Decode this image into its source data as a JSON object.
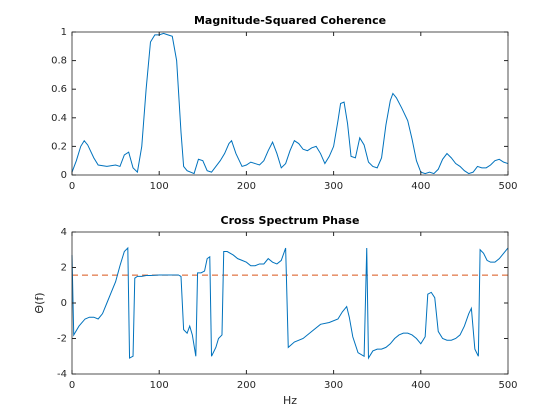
{
  "chart_data": [
    {
      "type": "line",
      "title": "Magnitude-Squared Coherence",
      "x": [
        0,
        5,
        10,
        14,
        18,
        25,
        30,
        40,
        50,
        55,
        60,
        65,
        70,
        75,
        80,
        85,
        90,
        95,
        100,
        105,
        110,
        115,
        120,
        125,
        128,
        132,
        140,
        145,
        150,
        155,
        160,
        165,
        170,
        175,
        180,
        183,
        188,
        195,
        200,
        205,
        210,
        215,
        220,
        225,
        230,
        235,
        240,
        245,
        250,
        255,
        260,
        265,
        270,
        275,
        280,
        285,
        290,
        295,
        300,
        305,
        308,
        312,
        316,
        320,
        325,
        330,
        335,
        340,
        345,
        350,
        355,
        360,
        365,
        368,
        372,
        378,
        385,
        390,
        395,
        400,
        405,
        410,
        415,
        420,
        425,
        430,
        435,
        440,
        445,
        450,
        455,
        460,
        465,
        470,
        475,
        480,
        485,
        490,
        495,
        500
      ],
      "series": [
        {
          "color": "#0072bd",
          "values": [
            0.02,
            0.1,
            0.2,
            0.24,
            0.21,
            0.12,
            0.07,
            0.06,
            0.07,
            0.06,
            0.14,
            0.16,
            0.05,
            0.02,
            0.2,
            0.6,
            0.93,
            0.98,
            0.98,
            0.99,
            0.98,
            0.97,
            0.8,
            0.3,
            0.06,
            0.03,
            0.01,
            0.11,
            0.1,
            0.03,
            0.02,
            0.06,
            0.1,
            0.15,
            0.22,
            0.24,
            0.15,
            0.06,
            0.07,
            0.09,
            0.08,
            0.07,
            0.1,
            0.17,
            0.23,
            0.15,
            0.05,
            0.08,
            0.17,
            0.24,
            0.22,
            0.18,
            0.17,
            0.19,
            0.2,
            0.15,
            0.08,
            0.13,
            0.2,
            0.38,
            0.5,
            0.51,
            0.36,
            0.13,
            0.12,
            0.26,
            0.21,
            0.09,
            0.06,
            0.05,
            0.12,
            0.35,
            0.52,
            0.57,
            0.54,
            0.47,
            0.38,
            0.25,
            0.1,
            0.02,
            0.01,
            0.02,
            0.01,
            0.04,
            0.11,
            0.15,
            0.12,
            0.08,
            0.06,
            0.03,
            0.01,
            0.02,
            0.06,
            0.05,
            0.05,
            0.07,
            0.1,
            0.11,
            0.09,
            0.08
          ]
        }
      ],
      "xlim": [
        0,
        500
      ],
      "xticks": [
        0,
        100,
        200,
        300,
        400,
        500
      ],
      "ylim": [
        0,
        1
      ],
      "yticks": [
        0,
        0.2,
        0.4,
        0.6,
        0.8,
        1
      ]
    },
    {
      "type": "line",
      "title": "Cross Spectrum Phase",
      "xlabel": "Hz",
      "ylabel": "Θ(f)",
      "x": [
        0,
        2,
        8,
        15,
        20,
        25,
        30,
        35,
        40,
        45,
        50,
        55,
        60,
        64,
        66,
        70,
        72,
        75,
        80,
        85,
        90,
        100,
        110,
        122,
        125,
        128,
        132,
        135,
        138,
        142,
        144,
        148,
        152,
        155,
        158,
        160,
        165,
        168,
        172,
        174,
        178,
        185,
        190,
        195,
        200,
        205,
        210,
        215,
        220,
        225,
        230,
        235,
        240,
        245,
        248,
        255,
        265,
        275,
        285,
        295,
        305,
        310,
        315,
        318,
        322,
        328,
        335,
        338,
        340,
        345,
        350,
        355,
        360,
        365,
        370,
        375,
        380,
        385,
        390,
        395,
        400,
        405,
        408,
        412,
        416,
        420,
        425,
        430,
        435,
        440,
        445,
        450,
        455,
        458,
        462,
        466,
        468,
        472,
        476,
        480,
        485,
        490,
        495,
        500
      ],
      "series": [
        {
          "color": "#0072bd",
          "values": [
            2.7,
            -1.8,
            -1.3,
            -0.9,
            -0.8,
            -0.8,
            -0.9,
            -0.6,
            0,
            0.6,
            1.2,
            2.1,
            2.9,
            3.1,
            -3.1,
            -3.0,
            1.4,
            1.5,
            1.5,
            1.55,
            1.55,
            1.58,
            1.58,
            1.58,
            1.5,
            -1.5,
            -1.7,
            -1.3,
            -1.8,
            -3.0,
            1.7,
            1.7,
            1.8,
            2.5,
            2.6,
            -3.0,
            -2.5,
            -2.0,
            -1.8,
            2.9,
            2.9,
            2.7,
            2.5,
            2.4,
            2.3,
            2.1,
            2.1,
            2.2,
            2.2,
            2.5,
            2.3,
            2.2,
            2.4,
            3.1,
            -2.5,
            -2.2,
            -2.0,
            -1.6,
            -1.2,
            -1.1,
            -0.9,
            -0.5,
            -0.2,
            -0.8,
            -1.9,
            -2.8,
            -3.0,
            3.1,
            -3.1,
            -2.7,
            -2.6,
            -2.6,
            -2.5,
            -2.3,
            -2.0,
            -1.8,
            -1.7,
            -1.7,
            -1.8,
            -2.0,
            -2.3,
            -1.9,
            0.5,
            0.6,
            0.3,
            -1.6,
            -2.0,
            -2.1,
            -2.1,
            -2.0,
            -1.8,
            -1.3,
            -0.6,
            -0.3,
            -2.6,
            -3.0,
            3.0,
            2.8,
            2.4,
            2.3,
            2.3,
            2.5,
            2.8,
            3.1
          ]
        }
      ],
      "reference_line": {
        "value": 1.57,
        "color": "#d95319",
        "style": "dashed"
      },
      "xlim": [
        0,
        500
      ],
      "xticks": [
        0,
        100,
        200,
        300,
        400,
        500
      ],
      "ylim": [
        -4,
        4
      ],
      "yticks": [
        -4,
        -2,
        0,
        2,
        4
      ]
    }
  ]
}
